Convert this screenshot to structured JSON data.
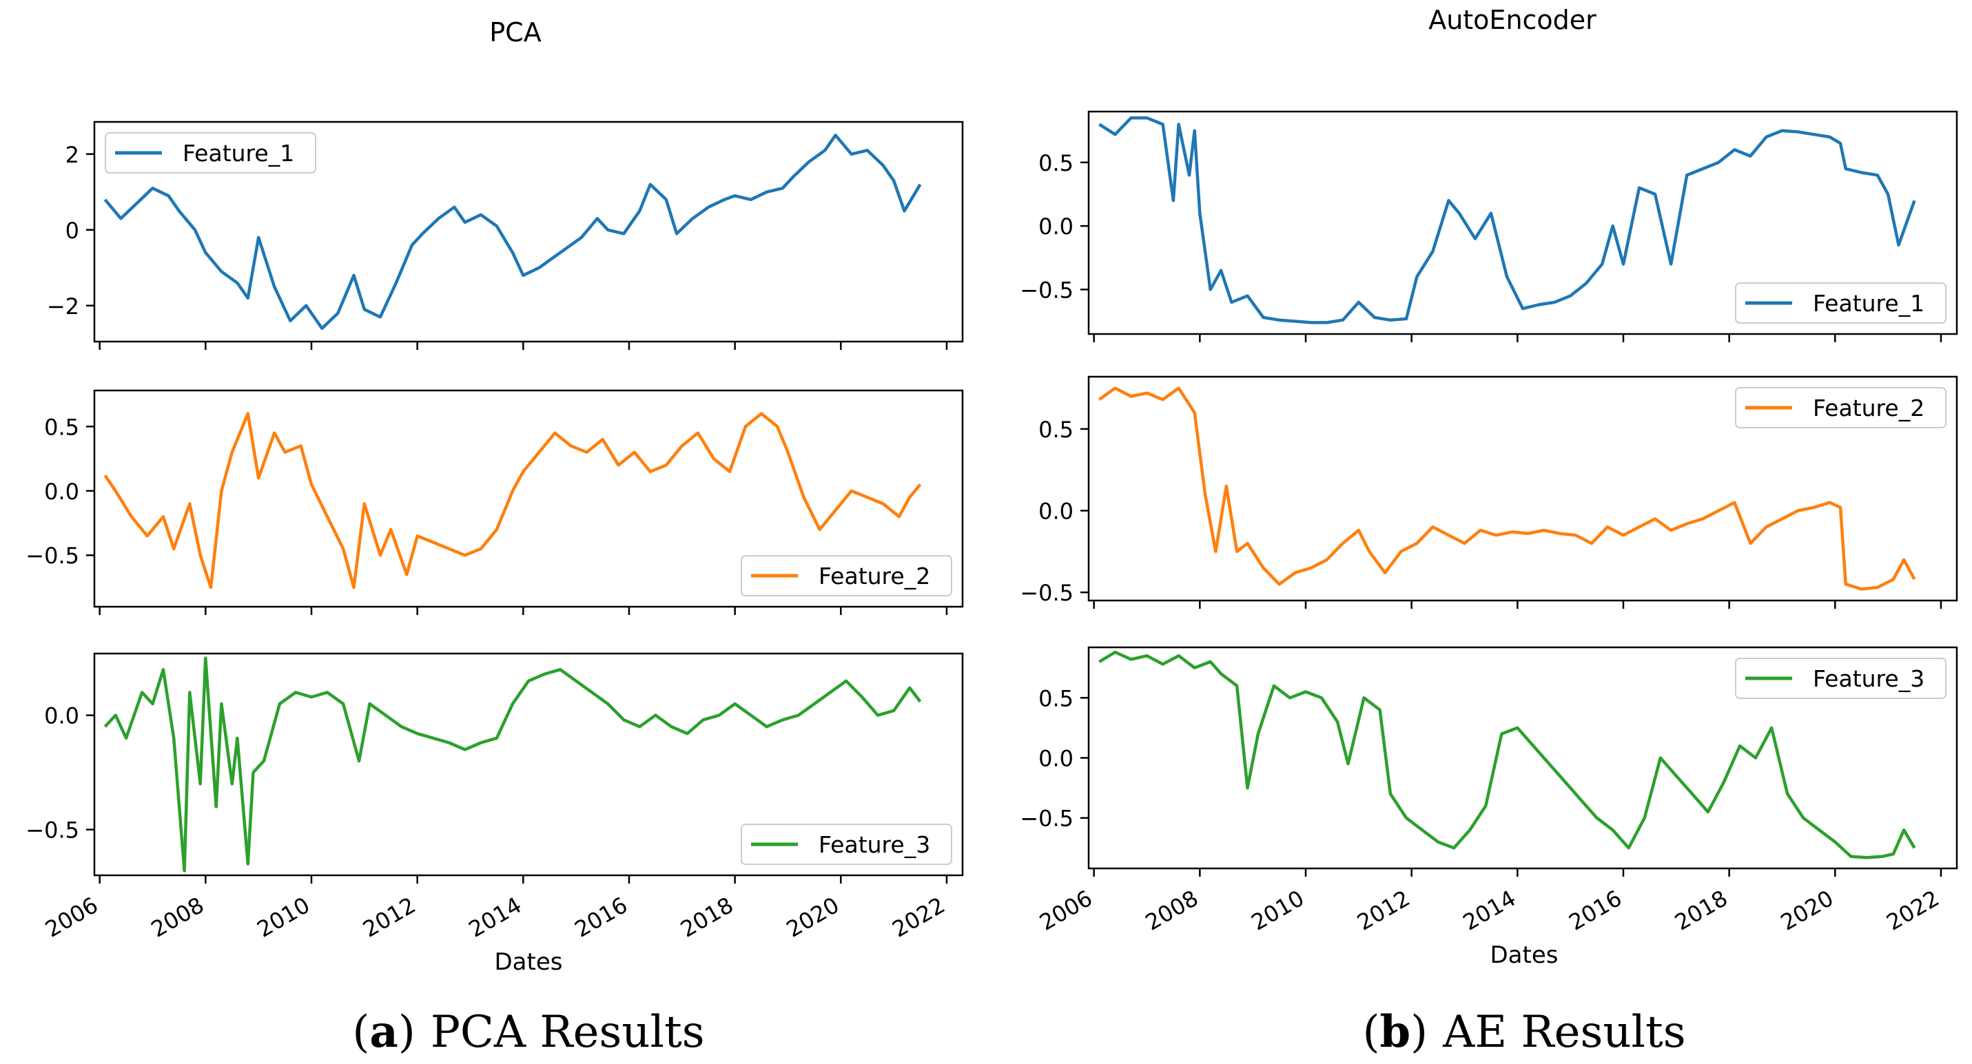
{
  "figure": {
    "caption_a_label": "a",
    "caption_a_text": "PCA Results",
    "caption_b_label": "b",
    "caption_b_text": "AE Results"
  },
  "colors": {
    "feature_1": "#1f77b4",
    "feature_2": "#ff7f0e",
    "feature_3": "#2ca02c"
  },
  "chart_data": [
    {
      "id": "pca",
      "type": "line",
      "title": "PCA",
      "xlabel": "Dates",
      "xlim": [
        2005.9,
        2022.3
      ],
      "xticks": [
        2006,
        2008,
        2010,
        2012,
        2014,
        2016,
        2018,
        2020,
        2022
      ],
      "panels": [
        {
          "series_name": "Feature_1",
          "color": "#1f77b4",
          "legend": "top-left",
          "ylim": [
            -2.95,
            2.85
          ],
          "yticks": [
            {
              "v": 2,
              "label": "2"
            },
            {
              "v": 0,
              "label": "0"
            },
            {
              "v": -2,
              "label": "−2"
            }
          ],
          "x": [
            2006.1,
            2006.4,
            2006.7,
            2007.0,
            2007.3,
            2007.5,
            2007.8,
            2008.0,
            2008.3,
            2008.6,
            2008.8,
            2009.0,
            2009.3,
            2009.6,
            2009.9,
            2010.2,
            2010.5,
            2010.8,
            2011.0,
            2011.3,
            2011.6,
            2011.9,
            2012.1,
            2012.4,
            2012.7,
            2012.9,
            2013.2,
            2013.5,
            2013.8,
            2014.0,
            2014.3,
            2014.6,
            2014.8,
            2015.1,
            2015.4,
            2015.6,
            2015.9,
            2016.2,
            2016.4,
            2016.7,
            2016.9,
            2017.2,
            2017.5,
            2017.8,
            2018.0,
            2018.3,
            2018.6,
            2018.9,
            2019.1,
            2019.4,
            2019.7,
            2019.9,
            2020.2,
            2020.5,
            2020.8,
            2021.0,
            2021.2,
            2021.5
          ],
          "values": [
            0.8,
            0.3,
            0.7,
            1.1,
            0.9,
            0.5,
            0.0,
            -0.6,
            -1.1,
            -1.4,
            -1.8,
            -0.2,
            -1.5,
            -2.4,
            -2.0,
            -2.6,
            -2.2,
            -1.2,
            -2.1,
            -2.3,
            -1.4,
            -0.4,
            -0.1,
            0.3,
            0.6,
            0.2,
            0.4,
            0.1,
            -0.6,
            -1.2,
            -1.0,
            -0.7,
            -0.5,
            -0.2,
            0.3,
            0.0,
            -0.1,
            0.5,
            1.2,
            0.8,
            -0.1,
            0.3,
            0.6,
            0.8,
            0.9,
            0.8,
            1.0,
            1.1,
            1.4,
            1.8,
            2.1,
            2.5,
            2.0,
            2.1,
            1.7,
            1.3,
            0.5,
            1.2
          ]
        },
        {
          "series_name": "Feature_2",
          "color": "#ff7f0e",
          "legend": "bottom-right",
          "ylim": [
            -0.9,
            0.78
          ],
          "yticks": [
            {
              "v": 0.5,
              "label": "0.5"
            },
            {
              "v": 0,
              "label": "0.0"
            },
            {
              "v": -0.5,
              "label": "−0.5"
            }
          ],
          "x": [
            2006.1,
            2006.3,
            2006.6,
            2006.9,
            2007.2,
            2007.4,
            2007.7,
            2007.9,
            2008.1,
            2008.3,
            2008.5,
            2008.8,
            2009.0,
            2009.3,
            2009.5,
            2009.8,
            2010.0,
            2010.3,
            2010.6,
            2010.8,
            2011.0,
            2011.3,
            2011.5,
            2011.8,
            2012.0,
            2012.3,
            2012.6,
            2012.9,
            2013.2,
            2013.5,
            2013.8,
            2014.0,
            2014.3,
            2014.6,
            2014.9,
            2015.2,
            2015.5,
            2015.8,
            2016.1,
            2016.4,
            2016.7,
            2017.0,
            2017.3,
            2017.6,
            2017.9,
            2018.2,
            2018.5,
            2018.8,
            2019.0,
            2019.3,
            2019.6,
            2019.9,
            2020.2,
            2020.5,
            2020.8,
            2021.1,
            2021.3,
            2021.5
          ],
          "values": [
            0.12,
            0.0,
            -0.2,
            -0.35,
            -0.2,
            -0.45,
            -0.1,
            -0.5,
            -0.75,
            0.0,
            0.3,
            0.6,
            0.1,
            0.45,
            0.3,
            0.35,
            0.05,
            -0.2,
            -0.45,
            -0.75,
            -0.1,
            -0.5,
            -0.3,
            -0.65,
            -0.35,
            -0.4,
            -0.45,
            -0.5,
            -0.45,
            -0.3,
            0.0,
            0.15,
            0.3,
            0.45,
            0.35,
            0.3,
            0.4,
            0.2,
            0.3,
            0.15,
            0.2,
            0.35,
            0.45,
            0.25,
            0.15,
            0.5,
            0.6,
            0.5,
            0.3,
            -0.05,
            -0.3,
            -0.15,
            0.0,
            -0.05,
            -0.1,
            -0.2,
            -0.05,
            0.05
          ]
        },
        {
          "series_name": "Feature_3",
          "color": "#2ca02c",
          "legend": "bottom-right",
          "ylim": [
            -0.7,
            0.27
          ],
          "yticks": [
            {
              "v": 0,
              "label": "0.0"
            },
            {
              "v": -0.5,
              "label": "−0.5"
            }
          ],
          "x": [
            2006.1,
            2006.3,
            2006.5,
            2006.8,
            2007.0,
            2007.2,
            2007.4,
            2007.6,
            2007.7,
            2007.9,
            2008.0,
            2008.2,
            2008.3,
            2008.5,
            2008.6,
            2008.8,
            2008.9,
            2009.1,
            2009.4,
            2009.7,
            2010.0,
            2010.3,
            2010.6,
            2010.9,
            2011.1,
            2011.4,
            2011.7,
            2012.0,
            2012.3,
            2012.6,
            2012.9,
            2013.2,
            2013.5,
            2013.8,
            2014.1,
            2014.4,
            2014.7,
            2015.0,
            2015.3,
            2015.6,
            2015.9,
            2016.2,
            2016.5,
            2016.8,
            2017.1,
            2017.4,
            2017.7,
            2018.0,
            2018.3,
            2018.6,
            2018.9,
            2019.2,
            2019.5,
            2019.8,
            2020.1,
            2020.4,
            2020.7,
            2021.0,
            2021.3,
            2021.5
          ],
          "values": [
            -0.05,
            0.0,
            -0.1,
            0.1,
            0.05,
            0.2,
            -0.1,
            -0.68,
            0.1,
            -0.3,
            0.25,
            -0.4,
            0.05,
            -0.3,
            -0.1,
            -0.65,
            -0.25,
            -0.2,
            0.05,
            0.1,
            0.08,
            0.1,
            0.05,
            -0.2,
            0.05,
            0.0,
            -0.05,
            -0.08,
            -0.1,
            -0.12,
            -0.15,
            -0.12,
            -0.1,
            0.05,
            0.15,
            0.18,
            0.2,
            0.15,
            0.1,
            0.05,
            -0.02,
            -0.05,
            0.0,
            -0.05,
            -0.08,
            -0.02,
            0.0,
            0.05,
            0.0,
            -0.05,
            -0.02,
            0.0,
            0.05,
            0.1,
            0.15,
            0.08,
            0.0,
            0.02,
            0.12,
            0.06
          ]
        }
      ]
    },
    {
      "id": "ae",
      "type": "line",
      "title": "AutoEncoder",
      "xlabel": "Dates",
      "xlim": [
        2005.9,
        2022.3
      ],
      "xticks": [
        2006,
        2008,
        2010,
        2012,
        2014,
        2016,
        2018,
        2020,
        2022
      ],
      "panels": [
        {
          "series_name": "Feature_1",
          "color": "#1f77b4",
          "legend": "bottom-right",
          "ylim": [
            -0.85,
            0.9
          ],
          "yticks": [
            {
              "v": 0.5,
              "label": "0.5"
            },
            {
              "v": 0,
              "label": "0.0"
            },
            {
              "v": -0.5,
              "label": "−0.5"
            }
          ],
          "x": [
            2006.1,
            2006.4,
            2006.7,
            2007.0,
            2007.3,
            2007.5,
            2007.6,
            2007.8,
            2007.9,
            2008.0,
            2008.2,
            2008.4,
            2008.6,
            2008.9,
            2009.2,
            2009.5,
            2009.8,
            2010.1,
            2010.4,
            2010.7,
            2011.0,
            2011.3,
            2011.6,
            2011.9,
            2012.1,
            2012.4,
            2012.7,
            2012.9,
            2013.2,
            2013.5,
            2013.8,
            2014.1,
            2014.4,
            2014.7,
            2015.0,
            2015.3,
            2015.6,
            2015.8,
            2016.0,
            2016.3,
            2016.6,
            2016.9,
            2017.2,
            2017.5,
            2017.8,
            2018.1,
            2018.4,
            2018.7,
            2019.0,
            2019.3,
            2019.6,
            2019.9,
            2020.1,
            2020.2,
            2020.5,
            2020.8,
            2021.0,
            2021.2,
            2021.5
          ],
          "values": [
            0.8,
            0.72,
            0.85,
            0.85,
            0.8,
            0.2,
            0.8,
            0.4,
            0.75,
            0.1,
            -0.5,
            -0.35,
            -0.6,
            -0.55,
            -0.72,
            -0.74,
            -0.75,
            -0.76,
            -0.76,
            -0.74,
            -0.6,
            -0.72,
            -0.74,
            -0.73,
            -0.4,
            -0.2,
            0.2,
            0.1,
            -0.1,
            0.1,
            -0.4,
            -0.65,
            -0.62,
            -0.6,
            -0.55,
            -0.45,
            -0.3,
            0.0,
            -0.3,
            0.3,
            0.25,
            -0.3,
            0.4,
            0.45,
            0.5,
            0.6,
            0.55,
            0.7,
            0.75,
            0.74,
            0.72,
            0.7,
            0.65,
            0.45,
            0.42,
            0.4,
            0.25,
            -0.15,
            0.2
          ]
        },
        {
          "series_name": "Feature_2",
          "color": "#ff7f0e",
          "legend": "top-right",
          "ylim": [
            -0.55,
            0.82
          ],
          "yticks": [
            {
              "v": 0.5,
              "label": "0.5"
            },
            {
              "v": 0,
              "label": "0.0"
            },
            {
              "v": -0.5,
              "label": "−0.5"
            }
          ],
          "x": [
            2006.1,
            2006.4,
            2006.7,
            2007.0,
            2007.3,
            2007.6,
            2007.9,
            2008.1,
            2008.3,
            2008.5,
            2008.7,
            2008.9,
            2009.2,
            2009.5,
            2009.8,
            2010.1,
            2010.4,
            2010.7,
            2011.0,
            2011.2,
            2011.5,
            2011.8,
            2012.1,
            2012.4,
            2012.7,
            2013.0,
            2013.3,
            2013.6,
            2013.9,
            2014.2,
            2014.5,
            2014.8,
            2015.1,
            2015.4,
            2015.7,
            2016.0,
            2016.3,
            2016.6,
            2016.9,
            2017.2,
            2017.5,
            2017.8,
            2018.1,
            2018.4,
            2018.7,
            2019.0,
            2019.3,
            2019.6,
            2019.9,
            2020.1,
            2020.2,
            2020.5,
            2020.8,
            2021.1,
            2021.3,
            2021.5
          ],
          "values": [
            0.68,
            0.75,
            0.7,
            0.72,
            0.68,
            0.75,
            0.6,
            0.1,
            -0.25,
            0.15,
            -0.25,
            -0.2,
            -0.35,
            -0.45,
            -0.38,
            -0.35,
            -0.3,
            -0.2,
            -0.12,
            -0.25,
            -0.38,
            -0.25,
            -0.2,
            -0.1,
            -0.15,
            -0.2,
            -0.12,
            -0.15,
            -0.13,
            -0.14,
            -0.12,
            -0.14,
            -0.15,
            -0.2,
            -0.1,
            -0.15,
            -0.1,
            -0.05,
            -0.12,
            -0.08,
            -0.05,
            0.0,
            0.05,
            -0.2,
            -0.1,
            -0.05,
            0.0,
            0.02,
            0.05,
            0.02,
            -0.45,
            -0.48,
            -0.47,
            -0.42,
            -0.3,
            -0.42
          ]
        },
        {
          "series_name": "Feature_3",
          "color": "#2ca02c",
          "legend": "top-right",
          "ylim": [
            -0.92,
            0.92
          ],
          "yticks": [
            {
              "v": 0.5,
              "label": "0.5"
            },
            {
              "v": 0,
              "label": "0.0"
            },
            {
              "v": -0.5,
              "label": "−0.5"
            }
          ],
          "x": [
            2006.1,
            2006.4,
            2006.7,
            2007.0,
            2007.3,
            2007.6,
            2007.9,
            2008.2,
            2008.4,
            2008.7,
            2008.9,
            2009.1,
            2009.4,
            2009.7,
            2010.0,
            2010.3,
            2010.6,
            2010.8,
            2011.1,
            2011.4,
            2011.6,
            2011.9,
            2012.2,
            2012.5,
            2012.8,
            2013.1,
            2013.4,
            2013.7,
            2014.0,
            2014.3,
            2014.6,
            2014.9,
            2015.2,
            2015.5,
            2015.8,
            2016.1,
            2016.4,
            2016.7,
            2017.0,
            2017.3,
            2017.6,
            2017.9,
            2018.2,
            2018.5,
            2018.8,
            2019.1,
            2019.4,
            2019.7,
            2020.0,
            2020.3,
            2020.6,
            2020.9,
            2021.1,
            2021.3,
            2021.5
          ],
          "values": [
            0.8,
            0.88,
            0.82,
            0.85,
            0.78,
            0.85,
            0.75,
            0.8,
            0.7,
            0.6,
            -0.25,
            0.2,
            0.6,
            0.5,
            0.55,
            0.5,
            0.3,
            -0.05,
            0.5,
            0.4,
            -0.3,
            -0.5,
            -0.6,
            -0.7,
            -0.75,
            -0.6,
            -0.4,
            0.2,
            0.25,
            0.1,
            -0.05,
            -0.2,
            -0.35,
            -0.5,
            -0.6,
            -0.75,
            -0.5,
            0.0,
            -0.15,
            -0.3,
            -0.45,
            -0.2,
            0.1,
            0.0,
            0.25,
            -0.3,
            -0.5,
            -0.6,
            -0.7,
            -0.82,
            -0.83,
            -0.82,
            -0.8,
            -0.6,
            -0.75
          ]
        }
      ]
    }
  ]
}
